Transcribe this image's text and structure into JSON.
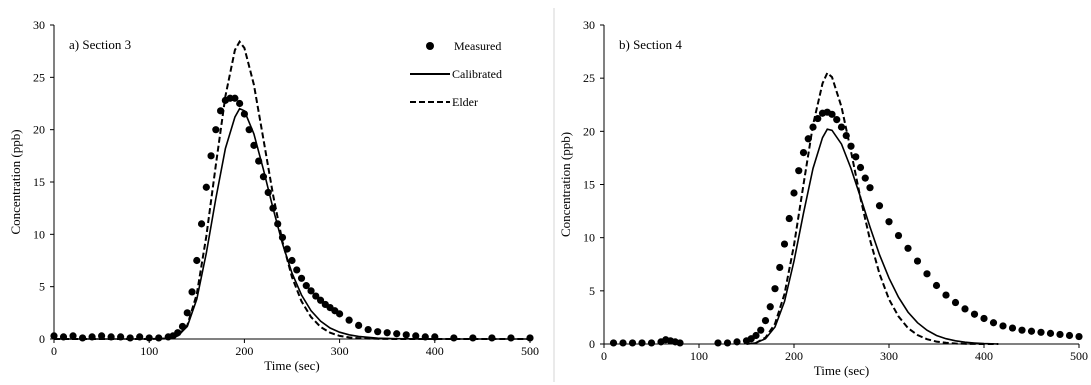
{
  "figure": {
    "divider": true
  },
  "chart_data": [
    {
      "type": "scatter",
      "annotation": "a) Section 3",
      "xlabel": "Time (sec)",
      "ylabel": "Concentration (ppb)",
      "xlim": [
        0,
        500
      ],
      "ylim": [
        0,
        30
      ],
      "xticks": [
        0,
        100,
        200,
        300,
        400,
        500
      ],
      "yticks": [
        0,
        5,
        10,
        15,
        20,
        25,
        30
      ],
      "grid": false,
      "legend": {
        "position": "top-right",
        "entries": [
          "Measured",
          "Calibrated",
          "Elder"
        ]
      },
      "series": [
        {
          "name": "Measured",
          "style": "markers",
          "color": "#000000",
          "x": [
            0,
            10,
            20,
            30,
            40,
            50,
            60,
            70,
            80,
            90,
            100,
            110,
            120,
            125,
            130,
            135,
            140,
            145,
            150,
            155,
            160,
            165,
            170,
            175,
            180,
            185,
            190,
            195,
            200,
            205,
            210,
            215,
            220,
            225,
            230,
            235,
            240,
            245,
            250,
            255,
            260,
            265,
            270,
            275,
            280,
            285,
            290,
            295,
            300,
            310,
            320,
            330,
            340,
            350,
            360,
            370,
            380,
            390,
            400,
            420,
            440,
            460,
            480,
            500
          ],
          "y": [
            0.3,
            0.2,
            0.3,
            0.1,
            0.2,
            0.3,
            0.2,
            0.2,
            0.1,
            0.2,
            0.1,
            0.1,
            0.2,
            0.3,
            0.6,
            1.2,
            2.5,
            4.5,
            7.5,
            11,
            14.5,
            17.5,
            20,
            21.8,
            22.8,
            23,
            23,
            22.5,
            21.5,
            20,
            18.5,
            17,
            15.5,
            14,
            12.5,
            11,
            9.7,
            8.6,
            7.5,
            6.6,
            5.8,
            5.1,
            4.6,
            4.1,
            3.7,
            3.3,
            3,
            2.7,
            2.4,
            1.8,
            1.3,
            0.9,
            0.7,
            0.6,
            0.5,
            0.4,
            0.3,
            0.2,
            0.2,
            0.1,
            0.1,
            0.1,
            0.1,
            0.1
          ]
        },
        {
          "name": "Calibrated",
          "style": "solid",
          "color": "#000000",
          "x": [
            0,
            100,
            120,
            130,
            140,
            150,
            160,
            170,
            180,
            190,
            195,
            200,
            210,
            220,
            230,
            240,
            250,
            260,
            270,
            280,
            290,
            300,
            310,
            320,
            340,
            360,
            380,
            400,
            500
          ],
          "y": [
            0,
            0,
            0.05,
            0.3,
            1.2,
            3.8,
            8.2,
            13.4,
            18.2,
            21.2,
            22,
            21.8,
            19.6,
            16.2,
            12.5,
            9.1,
            6.3,
            4.2,
            2.7,
            1.7,
            1.05,
            0.65,
            0.4,
            0.25,
            0.08,
            0.03,
            0.01,
            0,
            0
          ]
        },
        {
          "name": "Elder",
          "style": "dashed",
          "color": "#000000",
          "x": [
            0,
            100,
            120,
            130,
            140,
            150,
            160,
            170,
            180,
            190,
            195,
            200,
            210,
            220,
            230,
            240,
            250,
            260,
            270,
            280,
            290,
            300,
            310,
            320,
            340,
            360,
            380,
            400,
            500
          ],
          "y": [
            0,
            0,
            0.05,
            0.3,
            1.3,
            4.3,
            9.8,
            16.6,
            23.2,
            27.6,
            28.4,
            27.8,
            24.3,
            19.1,
            13.8,
            9.3,
            5.9,
            3.6,
            2.1,
            1.15,
            0.6,
            0.3,
            0.15,
            0.07,
            0.02,
            0,
            0,
            0,
            0
          ]
        }
      ]
    },
    {
      "type": "scatter",
      "annotation": "b) Section 4",
      "xlabel": "Time (sec)",
      "ylabel": "Concentration (ppb)",
      "xlim": [
        0,
        500
      ],
      "ylim": [
        0,
        30
      ],
      "xticks": [
        0,
        100,
        200,
        300,
        400,
        500
      ],
      "yticks": [
        0,
        5,
        10,
        15,
        20,
        25,
        30
      ],
      "grid": false,
      "series": [
        {
          "name": "Measured",
          "style": "markers",
          "color": "#000000",
          "x": [
            10,
            20,
            30,
            40,
            50,
            60,
            65,
            70,
            75,
            80,
            120,
            130,
            140,
            150,
            155,
            160,
            165,
            170,
            175,
            180,
            185,
            190,
            195,
            200,
            205,
            210,
            215,
            220,
            225,
            230,
            235,
            240,
            245,
            250,
            255,
            260,
            265,
            270,
            275,
            280,
            290,
            300,
            310,
            320,
            330,
            340,
            350,
            360,
            370,
            380,
            390,
            400,
            410,
            420,
            430,
            440,
            450,
            460,
            470,
            480,
            490,
            500
          ],
          "y": [
            0.1,
            0.1,
            0.1,
            0.1,
            0.1,
            0.2,
            0.4,
            0.3,
            0.2,
            0.1,
            0.1,
            0.1,
            0.2,
            0.3,
            0.5,
            0.8,
            1.3,
            2.2,
            3.5,
            5.2,
            7.2,
            9.4,
            11.8,
            14.2,
            16.3,
            18,
            19.3,
            20.4,
            21.2,
            21.7,
            21.8,
            21.6,
            21.1,
            20.4,
            19.6,
            18.6,
            17.6,
            16.6,
            15.6,
            14.7,
            13,
            11.5,
            10.2,
            9,
            7.8,
            6.6,
            5.5,
            4.6,
            3.9,
            3.3,
            2.8,
            2.4,
            2,
            1.7,
            1.5,
            1.3,
            1.2,
            1.1,
            1,
            0.9,
            0.8,
            0.7
          ]
        },
        {
          "name": "Calibrated",
          "style": "solid",
          "color": "#000000",
          "x": [
            150,
            160,
            170,
            180,
            190,
            200,
            210,
            220,
            230,
            235,
            240,
            250,
            260,
            270,
            280,
            290,
            300,
            310,
            320,
            330,
            340,
            350,
            360,
            370,
            380,
            390,
            400,
            415
          ],
          "y": [
            0,
            0.1,
            0.5,
            1.6,
            4,
            7.8,
            12.3,
            16.5,
            19.4,
            20.2,
            20.1,
            18.8,
            16.5,
            13.8,
            11,
            8.4,
            6.2,
            4.4,
            3,
            2,
            1.3,
            0.8,
            0.5,
            0.3,
            0.17,
            0.09,
            0.04,
            0
          ]
        },
        {
          "name": "Elder",
          "style": "dashed",
          "color": "#000000",
          "x": [
            150,
            160,
            170,
            180,
            190,
            200,
            210,
            220,
            230,
            235,
            240,
            250,
            260,
            270,
            280,
            290,
            300,
            310,
            320,
            330,
            340,
            350,
            360,
            370,
            380,
            390,
            400,
            415
          ],
          "y": [
            0,
            0.1,
            0.6,
            1.9,
            4.7,
            9.3,
            15,
            20.6,
            24.5,
            25.5,
            25.1,
            22.3,
            18.1,
            13.7,
            9.8,
            6.6,
            4.2,
            2.6,
            1.5,
            0.85,
            0.45,
            0.23,
            0.11,
            0.05,
            0.02,
            0.01,
            0,
            0
          ]
        }
      ]
    }
  ]
}
